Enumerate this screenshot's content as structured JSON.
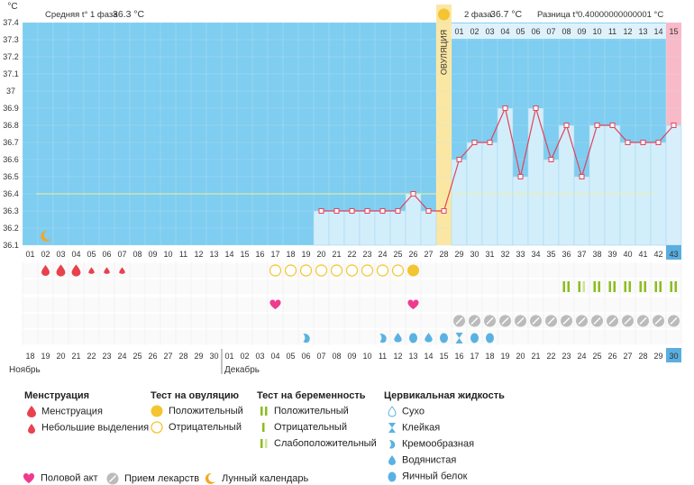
{
  "chart_data": {
    "type": "line",
    "unit_label": "°C",
    "ylim": [
      36.1,
      37.4
    ],
    "y_ticks": [
      "36.1",
      "36.2",
      "36.3",
      "36.4",
      "36.5",
      "36.6",
      "36.7",
      "36.8",
      "36.9",
      "37",
      "37.1",
      "37.2",
      "37.3",
      "37.4"
    ],
    "cycle_days": [
      "01",
      "02",
      "03",
      "04",
      "05",
      "06",
      "07",
      "08",
      "09",
      "10",
      "11",
      "12",
      "13",
      "14",
      "15",
      "16",
      "17",
      "18",
      "19",
      "20",
      "21",
      "22",
      "23",
      "24",
      "25",
      "26",
      "27",
      "28",
      "29",
      "30",
      "31",
      "32",
      "33",
      "34",
      "35",
      "36",
      "37",
      "38",
      "39",
      "40",
      "41",
      "42",
      "43"
    ],
    "phase2_days": [
      "01",
      "02",
      "03",
      "04",
      "05",
      "06",
      "07",
      "08",
      "09",
      "10",
      "11",
      "12",
      "13",
      "14",
      "15"
    ],
    "temperature": {
      "x": [
        20,
        21,
        22,
        23,
        24,
        25,
        26,
        27,
        28,
        29,
        30,
        31,
        32,
        33,
        34,
        35,
        36,
        37,
        38,
        39,
        40,
        41,
        42,
        43
      ],
      "y": [
        36.3,
        36.3,
        36.3,
        36.3,
        36.3,
        36.3,
        36.4,
        36.3,
        36.3,
        36.6,
        36.7,
        36.7,
        36.9,
        36.5,
        36.9,
        36.6,
        36.8,
        36.5,
        36.8,
        36.8,
        36.7,
        36.7,
        36.7,
        36.8
      ]
    },
    "phase1_avg_line": 36.4,
    "ovulation_day": 28,
    "current_day": 43,
    "header": {
      "phase1_label": "Средняя t° 1 фаза",
      "phase1_value": "36.3 °C",
      "phase2_label": "2 фаза",
      "phase2_value": "36.7 °C",
      "diff_label": "Разница t°",
      "diff_value": "0.40000000000001 °C"
    },
    "ovulation_label": "ОВУЛЯЦИЯ",
    "calendar_dates": [
      "18",
      "19",
      "20",
      "21",
      "22",
      "23",
      "24",
      "25",
      "26",
      "27",
      "28",
      "29",
      "30",
      "01",
      "02",
      "03",
      "04",
      "05",
      "06",
      "07",
      "08",
      "09",
      "10",
      "11",
      "12",
      "13",
      "14",
      "15",
      "16",
      "17",
      "18",
      "19",
      "20",
      "21",
      "22",
      "23",
      "24",
      "25",
      "26",
      "27",
      "28",
      "29",
      "30"
    ],
    "red_date_indices": [
      1,
      2,
      8,
      9,
      15,
      16,
      22,
      23,
      29,
      30,
      36,
      37
    ],
    "months": {
      "first": "Ноябрь",
      "second": "Декабрь"
    },
    "markers": {
      "moon_day": 2,
      "menstruation_heavy": [
        2,
        3,
        4
      ],
      "menstruation_light": [
        5,
        6,
        7
      ],
      "ovulation_positive": [
        26
      ],
      "ovulation_negative": [
        17,
        18,
        19,
        20,
        21,
        22,
        23,
        24,
        25
      ],
      "intercourse": [
        17,
        26
      ],
      "medication": [
        29,
        30,
        31,
        32,
        33,
        34,
        35,
        36,
        37,
        38,
        39,
        40,
        41,
        42,
        43
      ],
      "preg_positive": [
        36,
        37,
        38,
        39,
        40,
        41,
        42,
        43
      ],
      "preg_weak": [
        37
      ],
      "cervical_creamy": [
        19,
        24
      ],
      "cervical_watery": [
        25,
        27
      ],
      "cervical_eggwhite": [
        26,
        28,
        30,
        31
      ],
      "cervical_sticky": [
        29
      ]
    }
  },
  "legend": {
    "menstruation": {
      "title": "Менструация",
      "items": [
        "Менструация",
        "Небольшие выделения"
      ]
    },
    "ovulation_test": {
      "title": "Тест на овуляцию",
      "items": [
        "Положительный",
        "Отрицательный"
      ]
    },
    "pregnancy_test": {
      "title": "Тест на беременность",
      "items": [
        "Положительный",
        "Отрицательный",
        "Слабоположительный"
      ]
    },
    "cervical_fluid": {
      "title": "Цервикальная жидкость",
      "items": [
        "Сухо",
        "Клейкая",
        "Кремообразная",
        "Водянистая",
        "Яичный белок"
      ]
    },
    "bottom": [
      "Половой акт",
      "Прием лекарств",
      "Лунный календарь"
    ]
  },
  "colors": {
    "phase1_bg": "#7fcdf0",
    "phase2_bg": "#d3eefb",
    "ovulation_col": "#fbe7a3",
    "current_col": "#f8b9c8",
    "line": "#e0435b",
    "red_text": "#e4004f",
    "heart": "#ee3b8e",
    "moon": "#f5a623",
    "drop_red": "#e8424f",
    "drop_blue": "#5ab2e2",
    "sun": "#f4c431",
    "green": "#8bbd1f",
    "gray": "#bbbbbb",
    "blue_cell": "#5aaee0"
  }
}
